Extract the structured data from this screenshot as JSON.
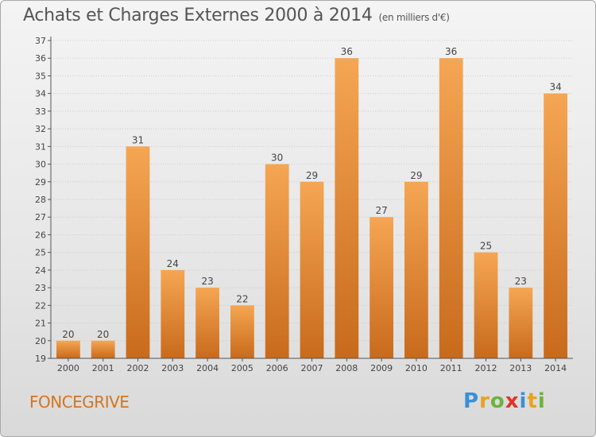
{
  "header": {
    "title": "Achats et Charges Externes 2000 à 2014",
    "subtitle": "(en milliers d'€)"
  },
  "footer": {
    "town": "FONCEGRIVE",
    "logo_letters": [
      "P",
      "r",
      "o",
      "x",
      "i",
      "t",
      "i"
    ],
    "logo_colors": [
      "#3a8fd8",
      "#e8a21e",
      "#6cb33f",
      "#e2332a",
      "#3a8fd8",
      "#e8a21e",
      "#6cb33f"
    ]
  },
  "colors": {
    "bar_top": "#f5a653",
    "bar_bottom": "#c86a1c",
    "axis": "#555555",
    "grid": "#cccccc"
  },
  "chart_data": {
    "type": "bar",
    "categories": [
      "2000",
      "2001",
      "2002",
      "2003",
      "2004",
      "2005",
      "2006",
      "2007",
      "2008",
      "2009",
      "2010",
      "2011",
      "2012",
      "2013",
      "2014"
    ],
    "values": [
      20,
      20,
      31,
      24,
      23,
      22,
      30,
      29,
      36,
      27,
      29,
      36,
      25,
      23,
      34
    ],
    "ylim": [
      19,
      37
    ],
    "yticks": [
      19,
      20,
      21,
      22,
      23,
      24,
      25,
      26,
      27,
      28,
      29,
      30,
      31,
      32,
      33,
      34,
      35,
      36,
      37
    ],
    "grid": "horizontal",
    "legend": "none",
    "data_labels": true
  }
}
